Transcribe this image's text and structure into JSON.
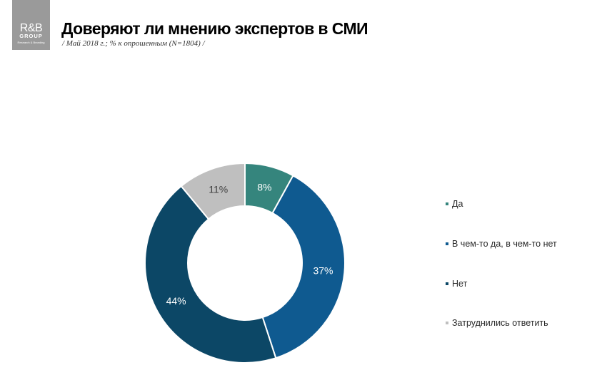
{
  "logo": {
    "line1": "R&B",
    "line2": "GROUP",
    "line3": "Research & Branding"
  },
  "header": {
    "title": "Доверяют ли мнению экспертов в СМИ",
    "subtitle": "/ Май 2018  г.; % к опрошенным (N=1804) /"
  },
  "chart_data": {
    "type": "pie",
    "title": "Доверяют ли мнению экспертов в СМИ",
    "subtitle": "/ Май 2018  г.; % к опрошенным (N=1804) /",
    "donut": true,
    "categories": [
      "Да",
      "В чем-то да, в чем-то нет",
      "Нет",
      "Затруднились ответить"
    ],
    "values": [
      8,
      37,
      44,
      11
    ],
    "labels": [
      "8%",
      "37%",
      "44%",
      "11%"
    ],
    "colors": [
      "#35857d",
      "#0f5a90",
      "#0c4766",
      "#bfbfbf"
    ],
    "legend_position": "right"
  }
}
